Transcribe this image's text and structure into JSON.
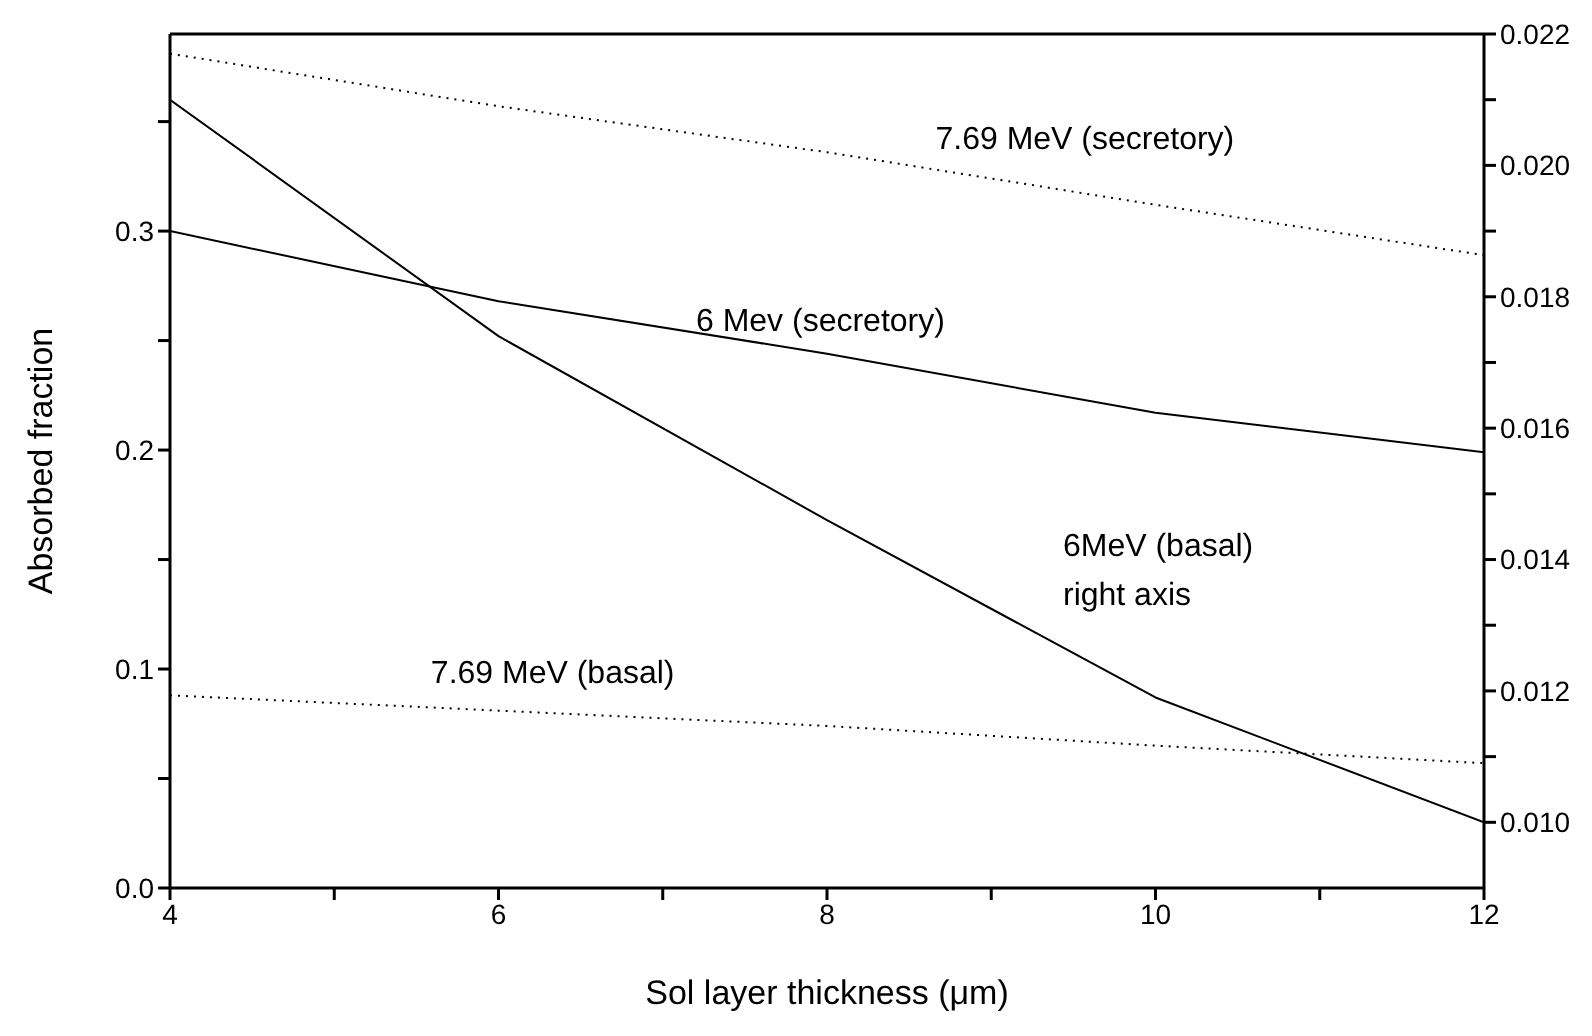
{
  "chart_data": {
    "type": "line",
    "xlabel": "Sol layer thickness (μm)",
    "ylabel": "Absorbed fraction",
    "x": [
      4,
      6,
      8,
      10,
      12
    ],
    "series": [
      {
        "name": "6 Mev (secretory)",
        "color": "#000000",
        "line_style": "solid",
        "values": [
          0.3,
          0.268,
          0.244,
          0.217,
          0.199
        ]
      },
      {
        "name": "6MeV (basal)",
        "color": "#000000",
        "line_style": "solid",
        "axis": "y2",
        "values": [
          0.021,
          0.0174,
          0.0146,
          0.0119,
          0.01
        ]
      },
      {
        "name": "7.69 MeV (secretory)",
        "color": "#000000",
        "line_style": "dotted",
        "values": [
          0.381,
          0.357,
          0.336,
          0.312,
          0.289
        ]
      },
      {
        "name": "7.69 MeV (basal)",
        "color": "#000000",
        "line_style": "dotted",
        "values": [
          0.088,
          0.081,
          0.074,
          0.065,
          0.057
        ]
      }
    ],
    "xlim": [
      4,
      12
    ],
    "xticks": [
      4,
      {
        "value": 5,
        "label": null
      },
      6,
      {
        "value": 7,
        "label": null
      },
      8,
      {
        "value": 9,
        "label": null
      },
      10,
      {
        "value": 11,
        "label": null
      },
      12
    ],
    "ylim": [
      0,
      0.39
    ],
    "yticks": [
      {
        "value": 0,
        "label": "0.0"
      },
      {
        "value": 0.05,
        "label": null
      },
      0.1,
      {
        "value": 0.15,
        "label": null
      },
      0.2,
      {
        "value": 0.25,
        "label": null
      },
      0.3,
      {
        "value": 0.35,
        "label": null
      }
    ],
    "y2lim": [
      0.009,
      0.022
    ],
    "y2ticks": [
      {
        "value": 0.01,
        "label": "0.010"
      },
      {
        "value": 0.011,
        "label": null
      },
      0.012,
      {
        "value": 0.013,
        "label": null
      },
      0.014,
      {
        "value": 0.015,
        "label": null
      },
      0.016,
      {
        "value": 0.017,
        "label": null
      },
      0.018,
      {
        "value": 0.019,
        "label": null
      },
      {
        "value": 0.02,
        "label": "0.020"
      },
      {
        "value": 0.021,
        "label": null
      },
      0.022
    ],
    "annotations": [
      "right axis"
    ],
    "marker": "none"
  }
}
